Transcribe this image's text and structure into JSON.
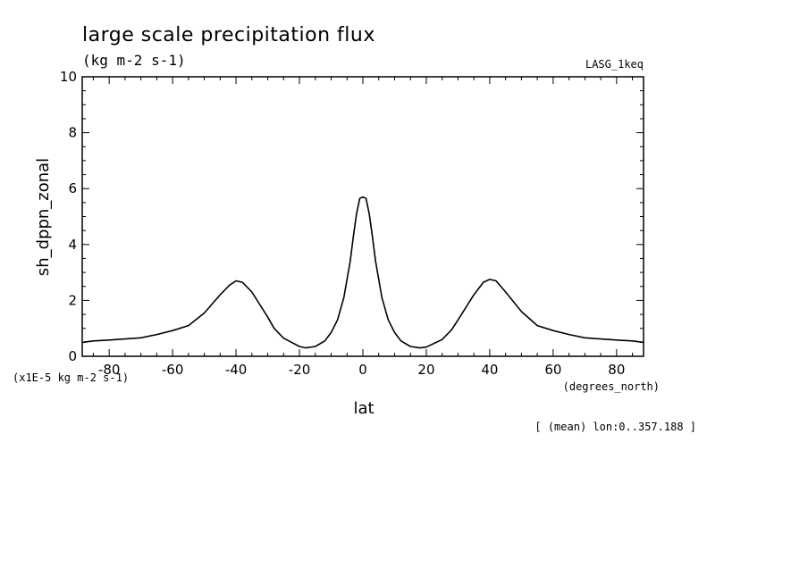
{
  "chart_data": {
    "type": "line",
    "title": "large scale precipitation flux",
    "units": "(kg m-2 s-1)",
    "dataset": "LASG_1keq",
    "xlabel": "lat",
    "ylabel": "sh_dppn_zonal",
    "x_units": "(degrees_north)",
    "y_scale_note": "(x1E-5 kg m-2 s-1)",
    "footnote": "[ (mean) lon:0..357.188 ]",
    "xlim": [
      -88.5,
      88.5
    ],
    "ylim": [
      0,
      10
    ],
    "x_ticks": [
      -80,
      -60,
      -40,
      -20,
      0,
      20,
      40,
      60,
      80
    ],
    "x_tick_labels": [
      "-80",
      "-60",
      "-40",
      "-20",
      "0",
      "20",
      "40",
      "60",
      "80"
    ],
    "y_ticks": [
      0,
      2,
      4,
      6,
      8,
      10
    ],
    "y_tick_labels": [
      "0",
      "2",
      "4",
      "6",
      "8",
      "10"
    ],
    "grid": false,
    "series": [
      {
        "x": [
          -88.5,
          -85,
          -80,
          -75,
          -70,
          -65,
          -60,
          -55,
          -50,
          -45,
          -42,
          -40,
          -38,
          -35,
          -30,
          -28,
          -25,
          -20,
          -18,
          -15,
          -12,
          -10,
          -8,
          -6,
          -4,
          -3,
          -2,
          -1,
          0,
          1,
          2,
          3,
          4,
          6,
          8,
          10,
          12,
          15,
          18,
          20,
          25,
          28,
          30,
          35,
          38,
          40,
          42,
          45,
          50,
          55,
          60,
          65,
          70,
          75,
          80,
          85,
          88.5
        ],
        "y": [
          0.5,
          0.55,
          0.58,
          0.62,
          0.66,
          0.78,
          0.92,
          1.1,
          1.55,
          2.2,
          2.55,
          2.7,
          2.65,
          2.3,
          1.4,
          1.0,
          0.65,
          0.35,
          0.3,
          0.35,
          0.55,
          0.85,
          1.3,
          2.1,
          3.4,
          4.3,
          5.1,
          5.65,
          5.7,
          5.65,
          5.1,
          4.3,
          3.4,
          2.1,
          1.3,
          0.85,
          0.55,
          0.35,
          0.3,
          0.33,
          0.6,
          0.95,
          1.3,
          2.2,
          2.65,
          2.75,
          2.7,
          2.3,
          1.6,
          1.1,
          0.92,
          0.78,
          0.66,
          0.62,
          0.58,
          0.55,
          0.5
        ]
      }
    ]
  }
}
